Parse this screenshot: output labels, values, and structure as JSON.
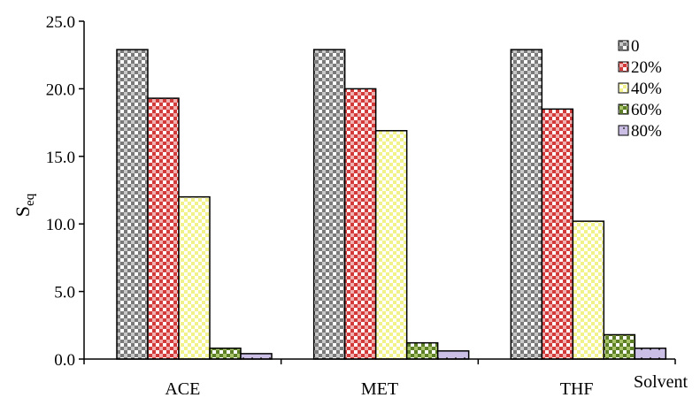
{
  "chart_data": {
    "type": "bar",
    "categories": [
      "ACE",
      "MET",
      "THF"
    ],
    "series": [
      {
        "name": "0",
        "values": [
          22.9,
          22.9,
          22.9
        ],
        "color": "#8c8c8c",
        "pattern": "checker"
      },
      {
        "name": "20%",
        "values": [
          19.3,
          20.0,
          18.5
        ],
        "color": "#d94a4a",
        "pattern": "checker"
      },
      {
        "name": "40%",
        "values": [
          12.0,
          16.9,
          10.2
        ],
        "color": "#f5f5a0",
        "pattern": "checker"
      },
      {
        "name": "60%",
        "values": [
          0.8,
          1.2,
          1.8
        ],
        "color": "#6a8c2a",
        "pattern": "checker"
      },
      {
        "name": "80%",
        "values": [
          0.4,
          0.6,
          0.8
        ],
        "color": "#c4b8e0",
        "pattern": "dots"
      }
    ],
    "ylabel": "S",
    "ylabel_sub": "eq",
    "xlabel": "Solvent",
    "ylim": [
      0,
      25
    ],
    "yticks": [
      "0.0",
      "5.0",
      "10.0",
      "15.0",
      "20.0",
      "25.0"
    ],
    "ytick_values": [
      0,
      5,
      10,
      15,
      20,
      25
    ],
    "grid": false,
    "legend_position": "top-right"
  }
}
